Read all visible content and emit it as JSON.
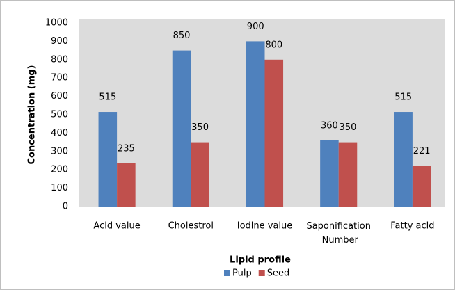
{
  "chart_data": {
    "type": "bar",
    "y_label": "Concentration (mg)",
    "x_label": "Lipid profile",
    "categories": [
      "Acid value",
      "Cholestrol",
      "Iodine value",
      "Saponification Number",
      "Fatty acid"
    ],
    "series": [
      {
        "name": "Pulp",
        "color": "#4f81bd",
        "values": [
          515,
          850,
          900,
          360,
          515
        ]
      },
      {
        "name": "Seed",
        "color": "#c0504d",
        "values": [
          235,
          350,
          800,
          350,
          221
        ]
      }
    ],
    "ylim": [
      0,
      1000
    ],
    "yticks": [
      0,
      100,
      200,
      300,
      400,
      500,
      600,
      700,
      800,
      900,
      1000
    ],
    "legend": "bottom"
  }
}
